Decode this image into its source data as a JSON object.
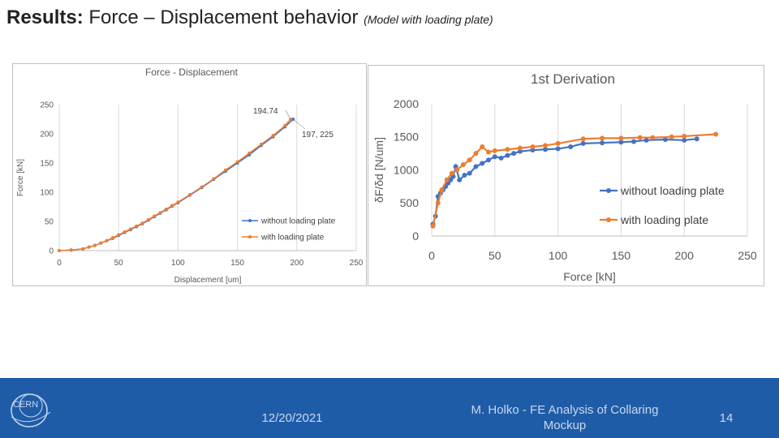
{
  "slide": {
    "title_bold": "Results:",
    "title_main": " Force – Displacement behavior ",
    "title_sub": "(Model with loading plate)"
  },
  "footer": {
    "logo_text": "CERN",
    "date": "12/20/2021",
    "author": "M. Holko - FE Analysis of Collaring Mockup",
    "page": "14",
    "colors": {
      "background": "#1f5ca8",
      "text": "#c9d8ee"
    }
  },
  "chart_data": [
    {
      "type": "line",
      "title": "Force - Displacement",
      "xlabel": "Displacement [um]",
      "ylabel": "Force [kN]",
      "xlim": [
        0,
        250
      ],
      "ylim": [
        0,
        250
      ],
      "xticks": [
        "0",
        "50",
        "100",
        "150",
        "200",
        "250"
      ],
      "yticks": [
        "0",
        "50",
        "100",
        "150",
        "200",
        "250"
      ],
      "grid": "vertical",
      "legend": "bottom-right",
      "annotations": [
        {
          "text": "194.74",
          "x": 194.74,
          "y": 225
        },
        {
          "text": "197, 225",
          "x": 197,
          "y": 225
        }
      ],
      "series": [
        {
          "name": "without loading plate",
          "color": "#4472c4",
          "x": [
            0,
            10,
            20,
            25,
            30,
            35,
            40,
            45,
            50,
            55,
            60,
            65,
            70,
            75,
            80,
            85,
            90,
            95,
            100,
            110,
            120,
            130,
            140,
            150,
            160,
            170,
            180,
            190,
            197
          ],
          "y": [
            0,
            1,
            3,
            6,
            9,
            13,
            17,
            21,
            26,
            31,
            36,
            41,
            46,
            52,
            58,
            64,
            70,
            76,
            82,
            95,
            108,
            122,
            136,
            150,
            164,
            180,
            195,
            212,
            225
          ]
        },
        {
          "name": "with loading plate",
          "color": "#ed7d31",
          "x": [
            0,
            10,
            20,
            25,
            30,
            35,
            40,
            45,
            50,
            55,
            60,
            65,
            70,
            75,
            80,
            85,
            90,
            95,
            100,
            110,
            120,
            130,
            140,
            150,
            160,
            170,
            180,
            190,
            194.74
          ],
          "y": [
            0,
            1,
            3,
            6,
            9,
            13,
            17,
            22,
            27,
            32,
            37,
            42,
            47,
            53,
            59,
            65,
            71,
            77,
            83,
            96,
            109,
            123,
            138,
            152,
            167,
            182,
            197,
            214,
            225
          ]
        }
      ]
    },
    {
      "type": "line",
      "title": "1st Derivation",
      "xlabel": "Force [kN]",
      "ylabel": "δF/δd [N/um]",
      "xlim": [
        0,
        250
      ],
      "ylim": [
        0,
        2000
      ],
      "xticks": [
        "0",
        "50",
        "100",
        "150",
        "200",
        "250"
      ],
      "yticks": [
        "0",
        "500",
        "1000",
        "1500",
        "2000"
      ],
      "grid": "vertical",
      "legend": "right",
      "series": [
        {
          "name": "without loading plate",
          "color": "#4472c4",
          "x": [
            1,
            3,
            5,
            7,
            9,
            11,
            13,
            15,
            17,
            19,
            22,
            26,
            30,
            35,
            40,
            45,
            50,
            55,
            60,
            65,
            70,
            80,
            90,
            100,
            110,
            120,
            135,
            150,
            160,
            170,
            185,
            200,
            210
          ],
          "y": [
            180,
            300,
            600,
            650,
            700,
            750,
            800,
            850,
            900,
            1050,
            850,
            920,
            950,
            1050,
            1100,
            1150,
            1200,
            1180,
            1220,
            1250,
            1280,
            1300,
            1310,
            1320,
            1350,
            1400,
            1410,
            1420,
            1430,
            1450,
            1460,
            1450,
            1470
          ]
        },
        {
          "name": "with loading plate",
          "color": "#ed7d31",
          "x": [
            1,
            5,
            8,
            12,
            16,
            20,
            25,
            30,
            35,
            40,
            45,
            50,
            60,
            70,
            80,
            90,
            100,
            120,
            135,
            150,
            165,
            175,
            190,
            200,
            225
          ],
          "y": [
            150,
            500,
            700,
            850,
            950,
            1000,
            1080,
            1150,
            1250,
            1350,
            1270,
            1290,
            1310,
            1330,
            1350,
            1370,
            1400,
            1470,
            1480,
            1480,
            1490,
            1490,
            1500,
            1510,
            1540
          ]
        }
      ]
    }
  ]
}
